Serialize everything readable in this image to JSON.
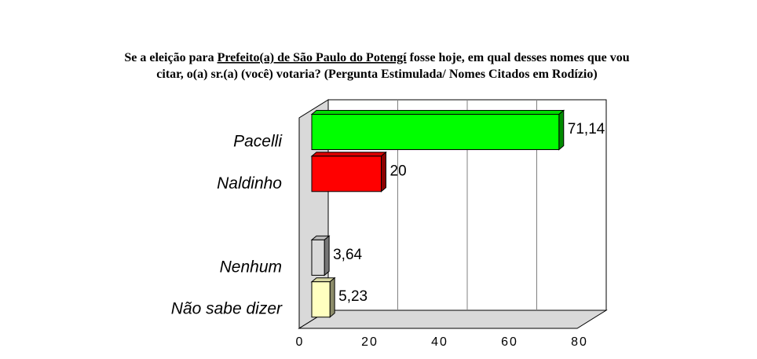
{
  "chart_data": {
    "type": "bar3d",
    "title": [
      "Se a eleição para ",
      "Prefeito(a) de São Paulo do Potengí",
      " fosse hoje, em qual desses nomes que vou",
      "citar, o(a) sr.(a) (você) votaria? (Pergunta Estimulada/ Nomes Citados em Rodízio)"
    ],
    "categories": [
      "Pacelli",
      "Naldinho",
      null,
      "Nenhum",
      "Não sabe dizer"
    ],
    "values": [
      71.14,
      20,
      null,
      3.64,
      5.23
    ],
    "value_labels": [
      "71,14",
      "20",
      null,
      "3,64",
      "5,23"
    ],
    "colors": [
      "#00ff00",
      "#ff0000",
      null,
      "#d9d9d9",
      "#ffffc0"
    ],
    "xlim": [
      0,
      80
    ],
    "xticks": [
      0,
      20,
      40,
      60,
      80
    ],
    "grid": true
  }
}
